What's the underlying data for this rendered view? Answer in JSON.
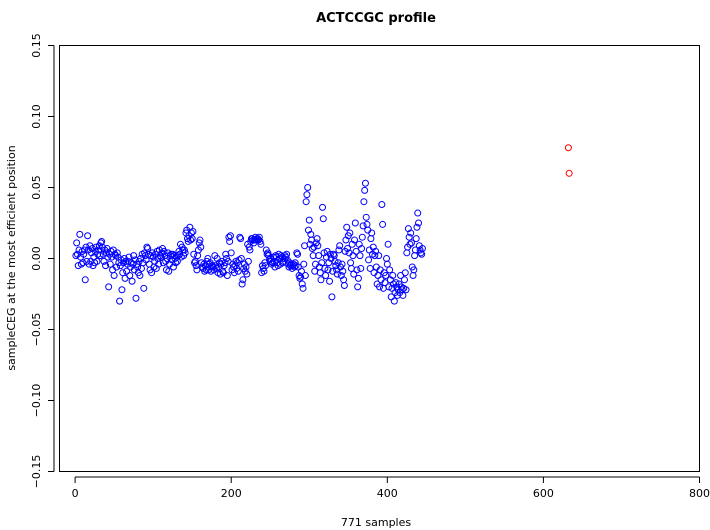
{
  "chart_data": {
    "type": "scatter",
    "title": "ACTCCGC profile",
    "xlabel": "771 samples",
    "ylabel": "sampleCEG at the most efficient position",
    "xlim": [
      -20,
      800
    ],
    "ylim": [
      -0.15,
      0.15
    ],
    "x_ticks": [
      0,
      200,
      400,
      600,
      800
    ],
    "y_ticks": [
      -0.15,
      -0.1,
      -0.05,
      0.0,
      0.05,
      0.1,
      0.15
    ],
    "x_tick_labels": [
      "0",
      "200",
      "400",
      "600",
      "800"
    ],
    "y_tick_labels": [
      "−0.15",
      "−0.10",
      "−0.05",
      "0.00",
      "0.05",
      "0.10",
      "0.15"
    ],
    "grid": false,
    "legend": "none",
    "colors": {
      "normal": "#0000ff",
      "highlight": "#ff0000"
    },
    "series": [
      {
        "color": "#0000ff",
        "x_start": 1,
        "y": [
          0.002,
          0.011,
          0.003,
          -0.005,
          0.006,
          0.017,
          0.001,
          -0.004,
          0.005,
          -0.003,
          0.003,
          0.006,
          -0.015,
          0.008,
          -0.002,
          0.016,
          0.006,
          -0.004,
          0.009,
          -0.002,
          0.004,
          0.007,
          -0.005,
          0.001,
          -0.003,
          0.005,
          0.008,
          -0.002,
          0.003,
          0.006,
          0.009,
          0.002,
          0.011,
          0.012,
          0.008,
          0.003,
          -0.002,
          0.006,
          -0.005,
          0.004,
          0.007,
          0.001,
          -0.02,
          0.003,
          -0.004,
          0.005,
          0.001,
          -0.008,
          0.006,
          -0.012,
          0.003,
          0.002,
          -0.006,
          0.004,
          0.001,
          -0.003,
          -0.03,
          -0.005,
          -0.001,
          -0.022,
          -0.01,
          -0.003,
          0.0,
          -0.014,
          -0.002,
          -0.009,
          -0.004,
          -0.002,
          0.001,
          -0.012,
          -0.006,
          -0.003,
          -0.016,
          -0.004,
          0.002,
          -0.008,
          -0.001,
          -0.028,
          -0.004,
          -0.006,
          -0.01,
          -0.002,
          -0.012,
          0.0,
          -0.007,
          0.003,
          -0.003,
          -0.021,
          0.004,
          0.002,
          -0.001,
          0.008,
          0.007,
          0.003,
          -0.004,
          -0.008,
          0.002,
          -0.01,
          0.004,
          0.001,
          -0.006,
          -0.002,
          0.003,
          -0.007,
          0.005,
          0.0,
          -0.004,
          0.006,
          0.002,
          0.001,
          0.004,
          0.007,
          -0.003,
          0.005,
          0.002,
          -0.002,
          -0.008,
          0.0,
          0.004,
          -0.009,
          -0.004,
          0.002,
          0.003,
          -0.001,
          0.003,
          -0.006,
          0.002,
          0.0,
          -0.003,
          0.001,
          -0.002,
          0.002,
          0.005,
          0.003,
          0.01,
          0.001,
          0.008,
          0.006,
          0.002,
          0.006,
          0.004,
          0.018,
          0.02,
          0.014,
          0.012,
          0.016,
          0.022,
          0.013,
          0.018,
          0.014,
          0.019,
          0.003,
          -0.003,
          -0.002,
          -0.005,
          -0.008,
          0.002,
          0.006,
          0.011,
          0.013,
          0.008,
          -0.003,
          -0.006,
          -0.007,
          -0.004,
          -0.009,
          -0.005,
          -0.008,
          -0.002,
          0.0,
          -0.008,
          -0.004,
          -0.003,
          -0.009,
          -0.006,
          -0.005,
          -0.006,
          -0.008,
          0.002,
          -0.005,
          -0.007,
          0.0,
          -0.01,
          -0.006,
          -0.003,
          -0.011,
          -0.004,
          -0.002,
          -0.009,
          -0.01,
          -0.005,
          -0.003,
          0.003,
          0.0,
          -0.012,
          -0.002,
          0.015,
          0.012,
          0.016,
          0.004,
          -0.008,
          -0.004,
          -0.006,
          -0.01,
          -0.005,
          -0.002,
          -0.007,
          -0.003,
          -0.009,
          -0.001,
          0.015,
          0.014,
          0.0,
          -0.018,
          -0.015,
          -0.007,
          -0.004,
          -0.009,
          -0.006,
          -0.011,
          0.01,
          -0.002,
          0.008,
          0.006,
          0.012,
          0.014,
          0.014,
          0.013,
          0.011,
          0.013,
          0.015,
          0.013,
          0.014,
          0.014,
          0.013,
          0.015,
          0.012,
          0.01,
          -0.01,
          -0.005,
          -0.007,
          -0.009,
          -0.003,
          -0.005,
          0.006,
          0.003,
          0.004,
          0.002,
          -0.001,
          0.0,
          -0.002,
          -0.004,
          -0.003,
          0.001,
          -0.002,
          -0.006,
          0.002,
          0.001,
          -0.003,
          -0.005,
          0.003,
          0.0,
          -0.004,
          0.002,
          0.001,
          -0.003,
          -0.002,
          0.0,
          0.002,
          0.001,
          0.003,
          -0.001,
          -0.004,
          -0.006,
          -0.003,
          -0.005,
          -0.004,
          -0.007,
          -0.005,
          -0.004,
          -0.006,
          -0.003,
          -0.005,
          0.004,
          0.003,
          -0.006,
          -0.012,
          -0.014,
          -0.013,
          -0.009,
          -0.018,
          -0.021,
          -0.004,
          0.009,
          -0.012,
          0.04,
          0.045,
          0.05,
          0.02,
          0.027,
          0.01,
          0.017,
          0.013,
          0.007,
          0.002,
          0.008,
          -0.009,
          -0.004,
          0.011,
          0.014,
          0.009,
          0.002,
          -0.006,
          -0.01,
          -0.015,
          -0.003,
          0.036,
          0.028,
          0.004,
          -0.007,
          -0.012,
          0.001,
          0.005,
          -0.008,
          -0.003,
          -0.016,
          0.003,
          0.0,
          -0.027,
          -0.009,
          0.003,
          0.002,
          -0.002,
          -0.005,
          -0.008,
          -0.011,
          -0.003,
          0.006,
          0.009,
          -0.006,
          -0.012,
          -0.004,
          -0.009,
          -0.015,
          -0.019,
          0.005,
          0.013,
          0.022,
          0.007,
          0.016,
          0.004,
          0.018,
          -0.003,
          -0.007,
          0.01,
          0.002,
          -0.011,
          0.013,
          0.025,
          0.005,
          -0.008,
          -0.02,
          -0.014,
          0.01,
          0.002,
          -0.007,
          0.007,
          0.015,
          0.023,
          0.04,
          0.048,
          0.053,
          0.029,
          0.024,
          0.02,
          -0.001,
          0.006,
          -0.007,
          0.014,
          0.018,
          0.003,
          0.008,
          -0.01,
          0.002,
          0.005,
          -0.006,
          -0.018,
          -0.012,
          0.002,
          -0.02,
          -0.008,
          -0.015,
          0.038,
          0.024,
          -0.021,
          -0.01,
          -0.017,
          -0.012,
          0.0,
          -0.004,
          0.01,
          -0.02,
          -0.008,
          -0.015,
          -0.027,
          -0.021,
          -0.012,
          -0.018,
          -0.03,
          -0.024,
          -0.017,
          -0.02,
          -0.026,
          -0.022,
          -0.018,
          -0.024,
          -0.012,
          -0.02,
          -0.022,
          -0.026,
          -0.021,
          -0.015,
          -0.01,
          -0.022,
          0.004,
          0.008,
          0.021,
          0.015,
          0.01,
          0.018,
          0.011,
          -0.006,
          -0.012,
          -0.008,
          0.002,
          0.006,
          0.014,
          0.022,
          0.032,
          0.025,
          0.009,
          0.006,
          0.004,
          0.003,
          0.007
        ]
      },
      {
        "color": "#ff0000",
        "points": [
          [
            632,
            0.078
          ],
          [
            633,
            0.06
          ]
        ]
      }
    ]
  }
}
